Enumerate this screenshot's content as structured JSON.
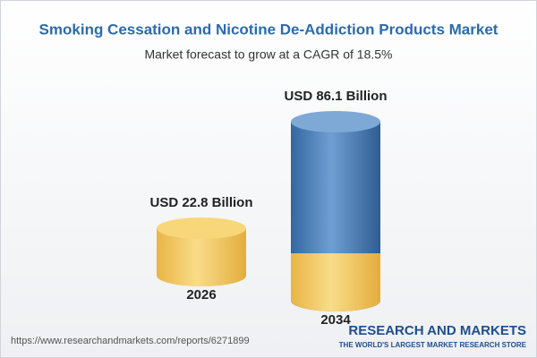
{
  "chart_data": {
    "type": "cylinder",
    "title": "Smoking Cessation and Nicotine De-Addiction Products Market",
    "subtitle": "Market forecast to grow at a CAGR of 18.5%",
    "categories": [
      "2026",
      "2034"
    ],
    "values": [
      22.8,
      86.1
    ],
    "value_labels": [
      "USD 22.8 Billion",
      "USD 86.1 Billion"
    ],
    "colors": [
      "#f2c557",
      "#4a7fb8"
    ]
  },
  "footer": {
    "url": "https://www.researchandmarkets.com/reports/6271899",
    "brand": "RESEARCH AND MARKETS",
    "tagline": "THE WORLD'S LARGEST MARKET RESEARCH STORE"
  }
}
